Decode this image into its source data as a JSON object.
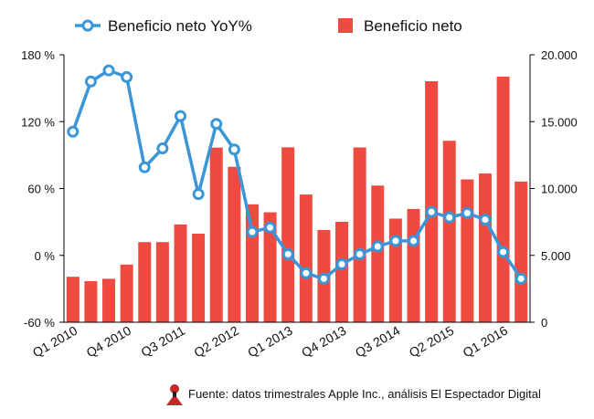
{
  "chart_data": {
    "type": "bar_line",
    "categories": [
      "Q1 2010",
      null,
      null,
      "Q4 2010",
      null,
      null,
      "Q3 2011",
      null,
      null,
      "Q2 2012",
      null,
      null,
      "Q1 2013",
      null,
      null,
      "Q4 2013",
      null,
      null,
      "Q3 2014",
      null,
      null,
      "Q2 2015",
      null,
      null,
      "Q1 2016",
      null
    ],
    "series": [
      {
        "name": "Beneficio neto YoY%",
        "color": "#3a96d6",
        "axis": "y",
        "kind": "line",
        "values": [
          111,
          156,
          166,
          160,
          79,
          96,
          125,
          55,
          118,
          95,
          21,
          25,
          1,
          -16,
          -21,
          -8,
          1,
          8,
          13,
          13,
          39,
          34,
          38,
          32,
          3,
          -21
        ]
      },
      {
        "name": "Beneficio neto",
        "color": "#ef4a40",
        "axis": "y2",
        "kind": "bar",
        "values": [
          3400,
          3070,
          3250,
          4310,
          5990,
          5990,
          7310,
          6620,
          13060,
          11620,
          8820,
          8220,
          13080,
          9550,
          6900,
          7510,
          13070,
          10220,
          7750,
          8470,
          18020,
          13570,
          10680,
          11120,
          18360,
          10520
        ]
      }
    ],
    "ylim": [
      -60,
      180
    ],
    "yticks": [
      {
        "value": -60,
        "label": "-60 %"
      },
      {
        "value": 0,
        "label": "0 %"
      },
      {
        "value": 60,
        "label": "60 %"
      },
      {
        "value": 120,
        "label": "120 %"
      },
      {
        "value": 180,
        "label": "180 %"
      }
    ],
    "y2lim": [
      0,
      20000
    ],
    "y2ticks": [
      0,
      {
        "value": 5000,
        "label": "5.000"
      },
      {
        "value": 10000,
        "label": "10.000"
      },
      {
        "value": 15000,
        "label": "15.000"
      },
      {
        "value": 20000,
        "label": "20.000"
      }
    ],
    "source": "Fuente: datos trimestrales Apple Inc., análisis El Espectador Digital"
  }
}
